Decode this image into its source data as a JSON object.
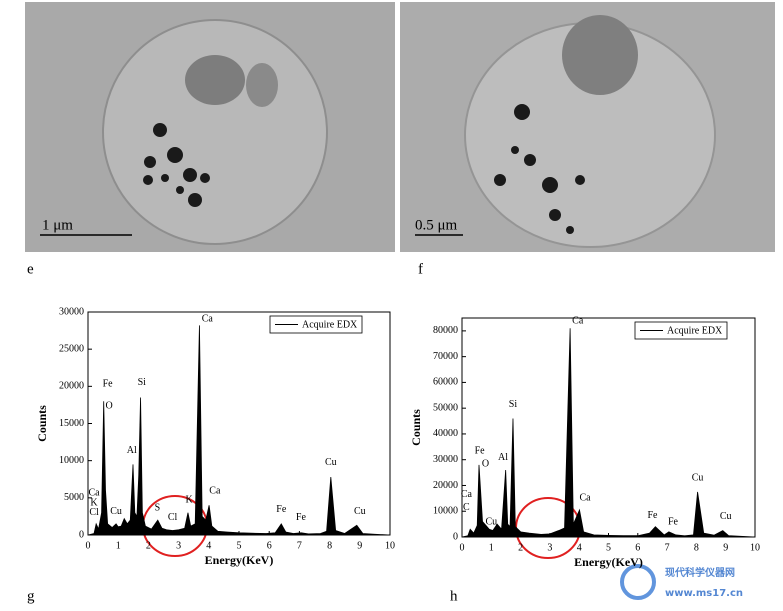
{
  "panels": [
    {
      "label": "e",
      "scale_bar": "1 μm"
    },
    {
      "label": "f",
      "scale_bar": "0.5 μm"
    }
  ],
  "chart_data": [
    {
      "type": "area",
      "panel_label": "g",
      "xlabel": "Energy(KeV)",
      "ylabel": "Counts",
      "xlim": [
        0,
        10
      ],
      "xticks": [
        0,
        1,
        2,
        3,
        4,
        5,
        6,
        7,
        8,
        9,
        10
      ],
      "ylim": [
        0,
        30000
      ],
      "yticks": [
        0,
        5000,
        10000,
        15000,
        20000,
        25000,
        30000
      ],
      "legend": "top-right",
      "x": [
        0,
        0.2,
        0.27,
        0.35,
        0.45,
        0.52,
        0.58,
        0.65,
        0.8,
        0.93,
        1.0,
        1.1,
        1.2,
        1.3,
        1.4,
        1.49,
        1.55,
        1.62,
        1.68,
        1.74,
        1.8,
        1.9,
        2.1,
        2.31,
        2.45,
        2.6,
        2.8,
        3.0,
        3.2,
        3.31,
        3.4,
        3.55,
        3.69,
        3.78,
        3.9,
        4.01,
        4.1,
        4.3,
        4.6,
        5.0,
        5.4,
        5.9,
        6.2,
        6.4,
        6.55,
        6.8,
        7.06,
        7.3,
        7.7,
        7.9,
        8.04,
        8.2,
        8.5,
        8.9,
        9.1,
        9.5,
        10
      ],
      "series": [
        {
          "name": "Acquire EDX",
          "color": "#000000",
          "values": [
            0,
            200,
            1500,
            800,
            3000,
            18000,
            6000,
            1500,
            1000,
            1500,
            1100,
            1200,
            2200,
            1500,
            2000,
            9500,
            3000,
            2500,
            8000,
            18500,
            3000,
            1200,
            800,
            2000,
            900,
            700,
            600,
            700,
            900,
            3000,
            1200,
            1500,
            28200,
            2500,
            2000,
            4000,
            1200,
            500,
            400,
            300,
            250,
            200,
            300,
            1500,
            400,
            200,
            300,
            150,
            200,
            500,
            7800,
            600,
            200,
            1300,
            200,
            100,
            0
          ]
        }
      ],
      "annotations": [
        {
          "text": "Ca",
          "x": 0.2,
          "y": 4800
        },
        {
          "text": "K",
          "x": 0.2,
          "y": 3500
        },
        {
          "text": "Cl",
          "x": 0.2,
          "y": 2200
        },
        {
          "text": "Fe",
          "x": 0.65,
          "y": 19500
        },
        {
          "text": "O",
          "x": 0.7,
          "y": 16500
        },
        {
          "text": "Cu",
          "x": 0.93,
          "y": 2300
        },
        {
          "text": "Al",
          "x": 1.45,
          "y": 10500
        },
        {
          "text": "Si",
          "x": 1.78,
          "y": 19700
        },
        {
          "text": "S",
          "x": 2.3,
          "y": 2800
        },
        {
          "text": "Cl",
          "x": 2.8,
          "y": 1500
        },
        {
          "text": "K",
          "x": 3.35,
          "y": 3900
        },
        {
          "text": "Ca",
          "x": 3.95,
          "y": 28200
        },
        {
          "text": "Ca",
          "x": 4.2,
          "y": 5100
        },
        {
          "text": "Fe",
          "x": 6.4,
          "y": 2600
        },
        {
          "text": "Fe",
          "x": 7.05,
          "y": 1500
        },
        {
          "text": "Cu",
          "x": 8.04,
          "y": 8900
        },
        {
          "text": "Cu",
          "x": 9.0,
          "y": 2300
        }
      ]
    },
    {
      "type": "area",
      "panel_label": "h",
      "xlabel": "Energy(KeV)",
      "ylabel": "Counts",
      "xlim": [
        0,
        10
      ],
      "xticks": [
        0,
        1,
        2,
        3,
        4,
        5,
        6,
        7,
        8,
        9,
        10
      ],
      "ylim": [
        0,
        85000
      ],
      "yticks": [
        0,
        10000,
        20000,
        30000,
        40000,
        50000,
        60000,
        70000,
        80000
      ],
      "legend": "top-right",
      "x": [
        0,
        0.2,
        0.28,
        0.4,
        0.52,
        0.58,
        0.7,
        0.93,
        1.05,
        1.2,
        1.35,
        1.49,
        1.56,
        1.64,
        1.74,
        1.82,
        2.0,
        2.3,
        2.7,
        3.0,
        3.3,
        3.5,
        3.69,
        3.8,
        4.01,
        4.15,
        4.5,
        5.0,
        5.5,
        6.0,
        6.4,
        6.6,
        6.9,
        7.06,
        7.3,
        7.6,
        7.9,
        8.04,
        8.25,
        8.6,
        8.9,
        9.1,
        9.5,
        10
      ],
      "series": [
        {
          "name": "Acquire EDX",
          "color": "#000000",
          "values": [
            0,
            500,
            3000,
            1500,
            4500,
            28000,
            6000,
            3000,
            2500,
            5000,
            3000,
            26000,
            5000,
            4000,
            46000,
            4000,
            2000,
            1500,
            1000,
            1200,
            2500,
            3500,
            81000,
            5000,
            10500,
            2000,
            800,
            600,
            500,
            500,
            1500,
            4000,
            800,
            2000,
            800,
            500,
            800,
            17500,
            1500,
            700,
            2500,
            500,
            300,
            0
          ]
        }
      ],
      "annotations": [
        {
          "text": "Ca",
          "x": 0.15,
          "y": 14000
        },
        {
          "text": "C",
          "x": 0.15,
          "y": 9000
        },
        {
          "text": "Fe",
          "x": 0.6,
          "y": 31000
        },
        {
          "text": "O",
          "x": 0.8,
          "y": 26000
        },
        {
          "text": "Cu",
          "x": 1.0,
          "y": 3500
        },
        {
          "text": "Al",
          "x": 1.4,
          "y": 28500
        },
        {
          "text": "Si",
          "x": 1.74,
          "y": 49000
        },
        {
          "text": "Ca",
          "x": 3.95,
          "y": 81500
        },
        {
          "text": "Ca",
          "x": 4.2,
          "y": 12800
        },
        {
          "text": "Fe",
          "x": 6.5,
          "y": 6000
        },
        {
          "text": "Fe",
          "x": 7.2,
          "y": 3500
        },
        {
          "text": "Cu",
          "x": 8.04,
          "y": 20500
        },
        {
          "text": "Cu",
          "x": 9.0,
          "y": 5500
        }
      ]
    }
  ],
  "watermark": {
    "name": "现代科学仪器网",
    "url": "www.ms17.cn"
  }
}
